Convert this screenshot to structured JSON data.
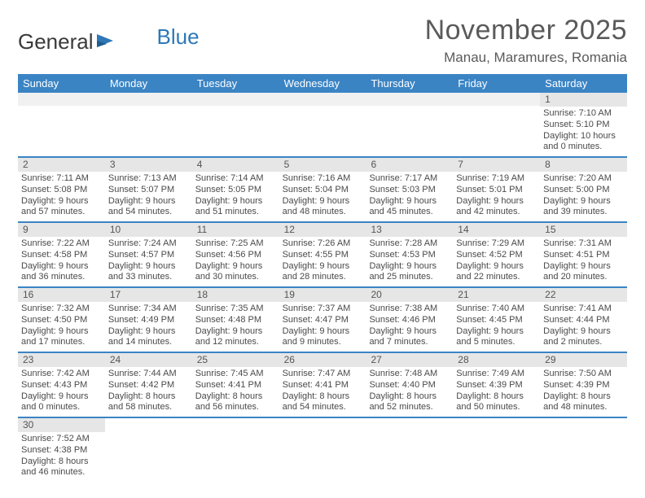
{
  "logo": {
    "word1": "General",
    "word2": "Blue"
  },
  "title": "November 2025",
  "location": "Manau, Maramures, Romania",
  "colors": {
    "header_bg": "#3b84c4",
    "header_text": "#ffffff",
    "daynum_bg": "#e6e6e6",
    "text": "#4a4a4a",
    "rule": "#3b84c4"
  },
  "weekdays": [
    "Sunday",
    "Monday",
    "Tuesday",
    "Wednesday",
    "Thursday",
    "Friday",
    "Saturday"
  ],
  "weeks": [
    [
      {
        "day": null
      },
      {
        "day": null
      },
      {
        "day": null
      },
      {
        "day": null
      },
      {
        "day": null
      },
      {
        "day": null
      },
      {
        "day": "1",
        "sunrise": "Sunrise: 7:10 AM",
        "sunset": "Sunset: 5:10 PM",
        "dl1": "Daylight: 10 hours",
        "dl2": "and 0 minutes."
      }
    ],
    [
      {
        "day": "2",
        "sunrise": "Sunrise: 7:11 AM",
        "sunset": "Sunset: 5:08 PM",
        "dl1": "Daylight: 9 hours",
        "dl2": "and 57 minutes."
      },
      {
        "day": "3",
        "sunrise": "Sunrise: 7:13 AM",
        "sunset": "Sunset: 5:07 PM",
        "dl1": "Daylight: 9 hours",
        "dl2": "and 54 minutes."
      },
      {
        "day": "4",
        "sunrise": "Sunrise: 7:14 AM",
        "sunset": "Sunset: 5:05 PM",
        "dl1": "Daylight: 9 hours",
        "dl2": "and 51 minutes."
      },
      {
        "day": "5",
        "sunrise": "Sunrise: 7:16 AM",
        "sunset": "Sunset: 5:04 PM",
        "dl1": "Daylight: 9 hours",
        "dl2": "and 48 minutes."
      },
      {
        "day": "6",
        "sunrise": "Sunrise: 7:17 AM",
        "sunset": "Sunset: 5:03 PM",
        "dl1": "Daylight: 9 hours",
        "dl2": "and 45 minutes."
      },
      {
        "day": "7",
        "sunrise": "Sunrise: 7:19 AM",
        "sunset": "Sunset: 5:01 PM",
        "dl1": "Daylight: 9 hours",
        "dl2": "and 42 minutes."
      },
      {
        "day": "8",
        "sunrise": "Sunrise: 7:20 AM",
        "sunset": "Sunset: 5:00 PM",
        "dl1": "Daylight: 9 hours",
        "dl2": "and 39 minutes."
      }
    ],
    [
      {
        "day": "9",
        "sunrise": "Sunrise: 7:22 AM",
        "sunset": "Sunset: 4:58 PM",
        "dl1": "Daylight: 9 hours",
        "dl2": "and 36 minutes."
      },
      {
        "day": "10",
        "sunrise": "Sunrise: 7:24 AM",
        "sunset": "Sunset: 4:57 PM",
        "dl1": "Daylight: 9 hours",
        "dl2": "and 33 minutes."
      },
      {
        "day": "11",
        "sunrise": "Sunrise: 7:25 AM",
        "sunset": "Sunset: 4:56 PM",
        "dl1": "Daylight: 9 hours",
        "dl2": "and 30 minutes."
      },
      {
        "day": "12",
        "sunrise": "Sunrise: 7:26 AM",
        "sunset": "Sunset: 4:55 PM",
        "dl1": "Daylight: 9 hours",
        "dl2": "and 28 minutes."
      },
      {
        "day": "13",
        "sunrise": "Sunrise: 7:28 AM",
        "sunset": "Sunset: 4:53 PM",
        "dl1": "Daylight: 9 hours",
        "dl2": "and 25 minutes."
      },
      {
        "day": "14",
        "sunrise": "Sunrise: 7:29 AM",
        "sunset": "Sunset: 4:52 PM",
        "dl1": "Daylight: 9 hours",
        "dl2": "and 22 minutes."
      },
      {
        "day": "15",
        "sunrise": "Sunrise: 7:31 AM",
        "sunset": "Sunset: 4:51 PM",
        "dl1": "Daylight: 9 hours",
        "dl2": "and 20 minutes."
      }
    ],
    [
      {
        "day": "16",
        "sunrise": "Sunrise: 7:32 AM",
        "sunset": "Sunset: 4:50 PM",
        "dl1": "Daylight: 9 hours",
        "dl2": "and 17 minutes."
      },
      {
        "day": "17",
        "sunrise": "Sunrise: 7:34 AM",
        "sunset": "Sunset: 4:49 PM",
        "dl1": "Daylight: 9 hours",
        "dl2": "and 14 minutes."
      },
      {
        "day": "18",
        "sunrise": "Sunrise: 7:35 AM",
        "sunset": "Sunset: 4:48 PM",
        "dl1": "Daylight: 9 hours",
        "dl2": "and 12 minutes."
      },
      {
        "day": "19",
        "sunrise": "Sunrise: 7:37 AM",
        "sunset": "Sunset: 4:47 PM",
        "dl1": "Daylight: 9 hours",
        "dl2": "and 9 minutes."
      },
      {
        "day": "20",
        "sunrise": "Sunrise: 7:38 AM",
        "sunset": "Sunset: 4:46 PM",
        "dl1": "Daylight: 9 hours",
        "dl2": "and 7 minutes."
      },
      {
        "day": "21",
        "sunrise": "Sunrise: 7:40 AM",
        "sunset": "Sunset: 4:45 PM",
        "dl1": "Daylight: 9 hours",
        "dl2": "and 5 minutes."
      },
      {
        "day": "22",
        "sunrise": "Sunrise: 7:41 AM",
        "sunset": "Sunset: 4:44 PM",
        "dl1": "Daylight: 9 hours",
        "dl2": "and 2 minutes."
      }
    ],
    [
      {
        "day": "23",
        "sunrise": "Sunrise: 7:42 AM",
        "sunset": "Sunset: 4:43 PM",
        "dl1": "Daylight: 9 hours",
        "dl2": "and 0 minutes."
      },
      {
        "day": "24",
        "sunrise": "Sunrise: 7:44 AM",
        "sunset": "Sunset: 4:42 PM",
        "dl1": "Daylight: 8 hours",
        "dl2": "and 58 minutes."
      },
      {
        "day": "25",
        "sunrise": "Sunrise: 7:45 AM",
        "sunset": "Sunset: 4:41 PM",
        "dl1": "Daylight: 8 hours",
        "dl2": "and 56 minutes."
      },
      {
        "day": "26",
        "sunrise": "Sunrise: 7:47 AM",
        "sunset": "Sunset: 4:41 PM",
        "dl1": "Daylight: 8 hours",
        "dl2": "and 54 minutes."
      },
      {
        "day": "27",
        "sunrise": "Sunrise: 7:48 AM",
        "sunset": "Sunset: 4:40 PM",
        "dl1": "Daylight: 8 hours",
        "dl2": "and 52 minutes."
      },
      {
        "day": "28",
        "sunrise": "Sunrise: 7:49 AM",
        "sunset": "Sunset: 4:39 PM",
        "dl1": "Daylight: 8 hours",
        "dl2": "and 50 minutes."
      },
      {
        "day": "29",
        "sunrise": "Sunrise: 7:50 AM",
        "sunset": "Sunset: 4:39 PM",
        "dl1": "Daylight: 8 hours",
        "dl2": "and 48 minutes."
      }
    ],
    [
      {
        "day": "30",
        "sunrise": "Sunrise: 7:52 AM",
        "sunset": "Sunset: 4:38 PM",
        "dl1": "Daylight: 8 hours",
        "dl2": "and 46 minutes."
      },
      {
        "day": null
      },
      {
        "day": null
      },
      {
        "day": null
      },
      {
        "day": null
      },
      {
        "day": null
      },
      {
        "day": null
      }
    ]
  ]
}
